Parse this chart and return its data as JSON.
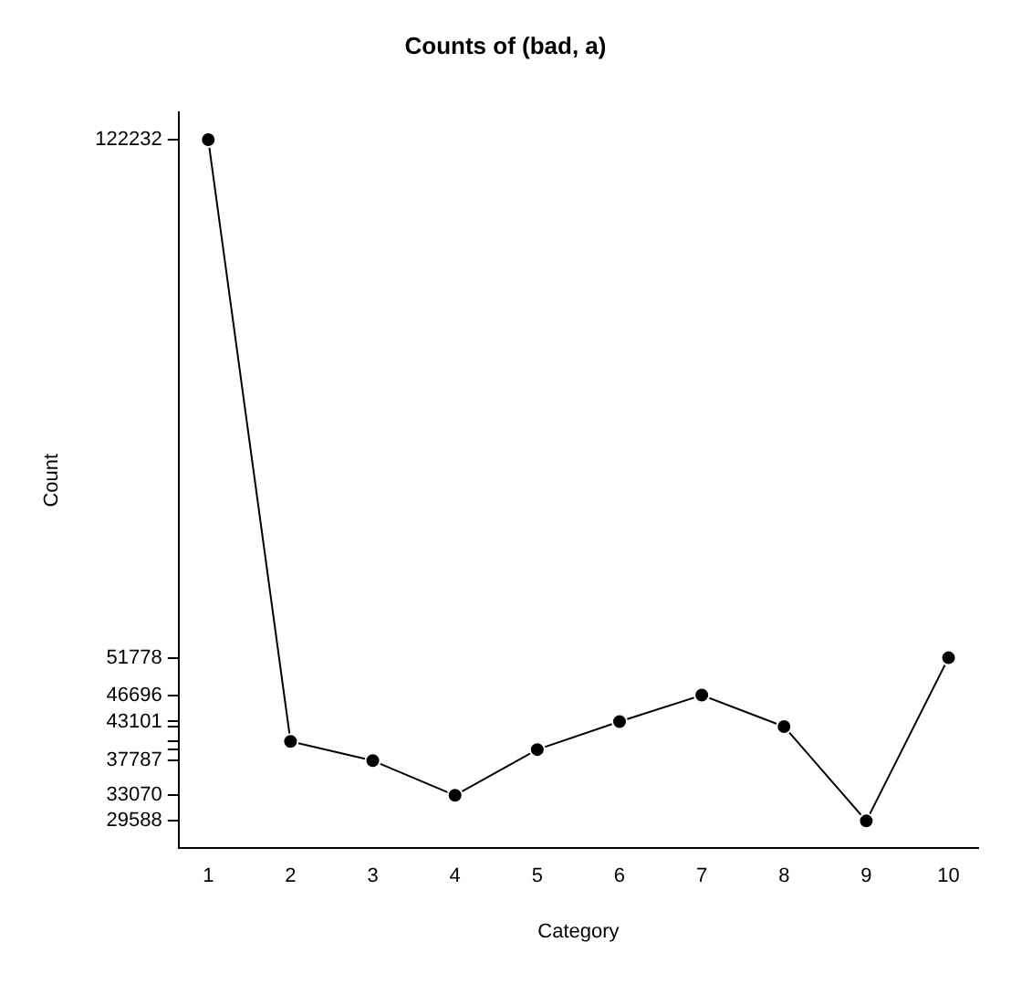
{
  "chart_data": {
    "type": "line",
    "title": "Counts of (bad, a)",
    "xlabel": "Category",
    "ylabel": "Count",
    "x": [
      1,
      2,
      3,
      4,
      5,
      6,
      7,
      8,
      9,
      10
    ],
    "series": [
      {
        "color": "#000000",
        "values": [
          122232,
          40391,
          37787,
          33070,
          39297,
          43101,
          46696,
          42424,
          29588,
          51778
        ]
      }
    ],
    "xlim": [
      0.64,
      10.36
    ],
    "xticks": [
      1,
      2,
      3,
      4,
      5,
      6,
      7,
      8,
      9,
      10
    ],
    "ylim": [
      25882,
      125938
    ],
    "yticks": [
      29588,
      33070,
      37787,
      {
        "value": 39297,
        "label": null
      },
      {
        "value": 40391,
        "label": null
      },
      {
        "value": 42424,
        "label": null
      },
      43101,
      46696,
      51778,
      122232
    ],
    "grid": false,
    "legend": false,
    "marker": "circle",
    "line_style": "solid"
  }
}
